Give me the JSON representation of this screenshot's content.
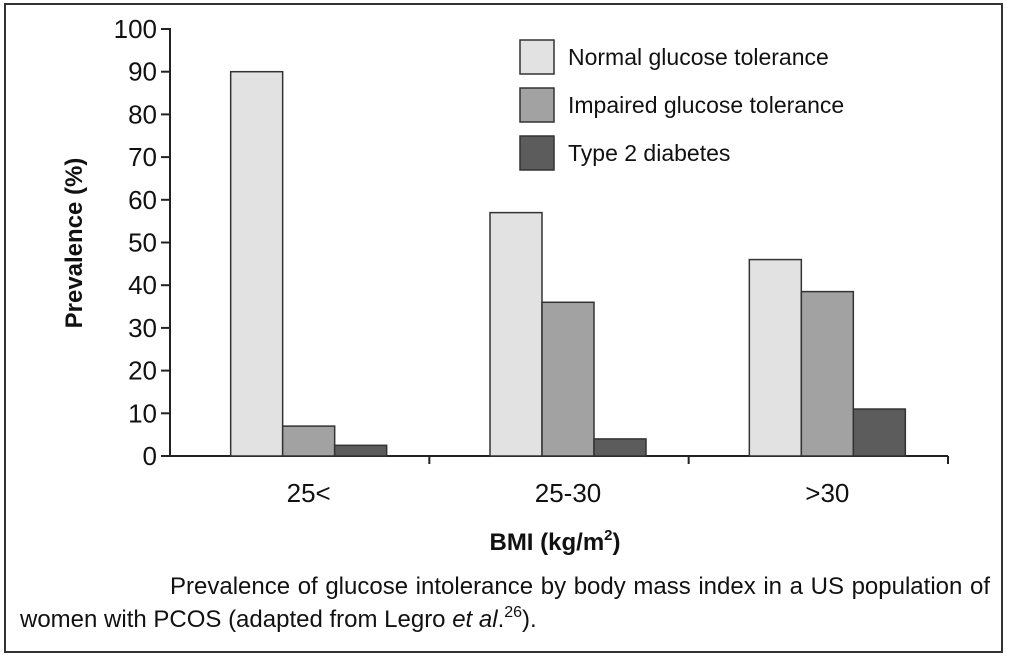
{
  "chart_data": {
    "type": "bar",
    "categories": [
      "25<",
      "25-30",
      ">30"
    ],
    "series": [
      {
        "name": "Normal glucose tolerance",
        "values": [
          90,
          57,
          46
        ],
        "color": "#e2e2e2"
      },
      {
        "name": "Impaired glucose tolerance",
        "values": [
          7,
          36,
          38.5
        ],
        "color": "#a2a2a2"
      },
      {
        "name": "Type 2 diabetes",
        "values": [
          2.5,
          4,
          11
        ],
        "color": "#5c5c5c"
      }
    ],
    "ylim": [
      0,
      100
    ],
    "yticks": [
      0,
      10,
      20,
      30,
      40,
      50,
      60,
      70,
      80,
      90,
      100
    ],
    "ylabel": "Prevalence (%)",
    "xlabel": "BMI (kg/m",
    "xlabel_superscript": "2",
    "xlabel_suffix": ")",
    "legend_position": "top-right",
    "grid": false
  },
  "caption": {
    "text": "Prevalence of glucose intolerance by body mass index in a US population of women with PCOS (adapted from Legro ",
    "italic": "et al",
    "after_italic": ".",
    "superscript": "26",
    "closing": ")."
  }
}
